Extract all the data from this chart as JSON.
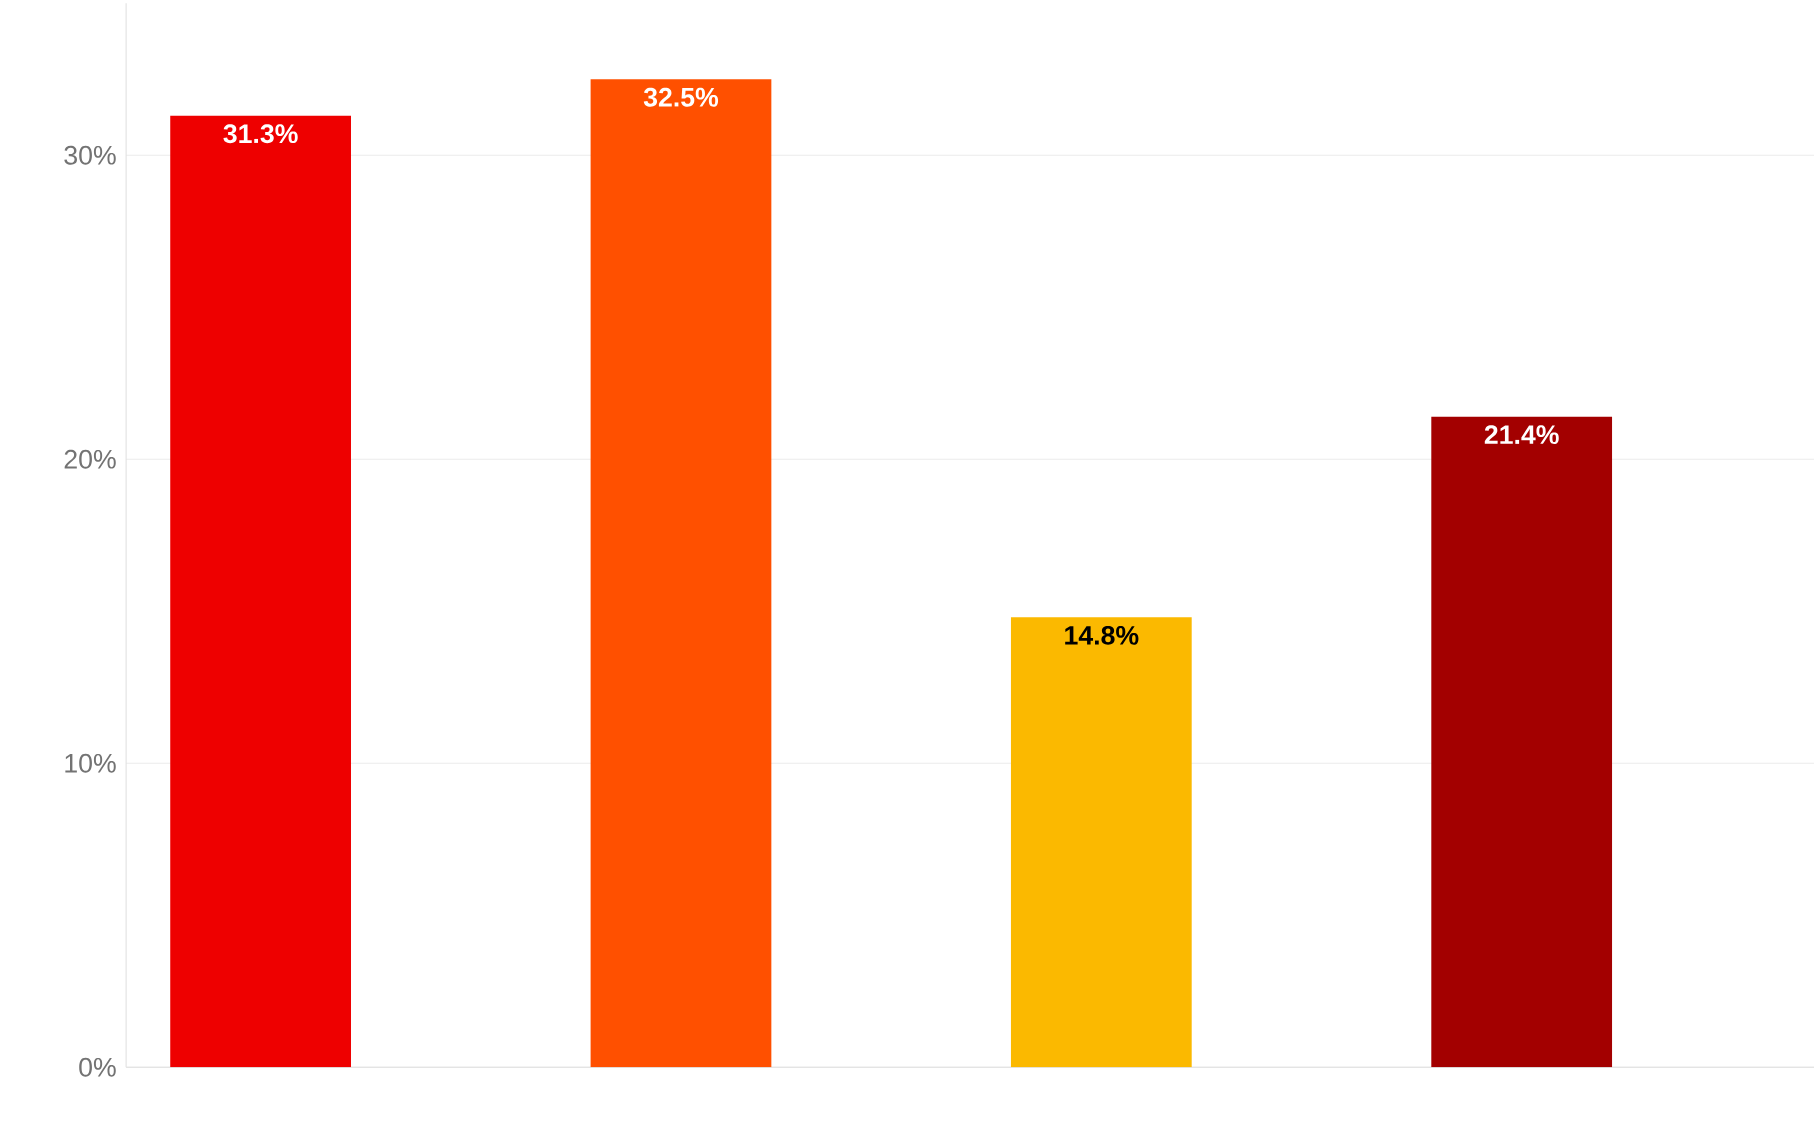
{
  "chart_data": {
    "type": "bar",
    "categories": [
      null,
      null,
      null,
      null
    ],
    "values": [
      31.3,
      32.5,
      14.8,
      21.4
    ],
    "colors": [
      "#ee0000",
      "#ff5000",
      "#fbb900",
      "#a30000"
    ],
    "value_labels": [
      "31.3%",
      "32.5%",
      "14.8%",
      "21.4%"
    ],
    "ylim": [
      0,
      35
    ],
    "yticks": [
      {
        "value": 0,
        "label": "0%"
      },
      {
        "value": 10,
        "label": "10%"
      },
      {
        "value": 20,
        "label": "20%"
      },
      {
        "value": 30,
        "label": "30%"
      }
    ],
    "grid": "y"
  }
}
